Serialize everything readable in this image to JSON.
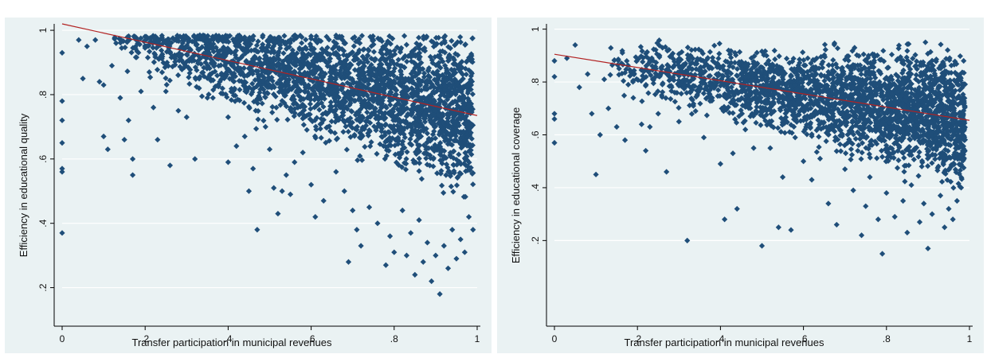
{
  "chart_data": [
    {
      "type": "scatter",
      "title": "",
      "xlabel": "Transfer participation in municipal revenues",
      "ylabel": "Efficiency in educational quality",
      "xlim": [
        0,
        1
      ],
      "ylim": [
        0.1,
        1.02
      ],
      "x_ticks": [
        0,
        0.2,
        0.4,
        0.6,
        0.8,
        1
      ],
      "x_tick_labels": [
        "0",
        ".2",
        ".4",
        ".6",
        ".8",
        "1"
      ],
      "y_ticks": [
        0.2,
        0.4,
        0.6,
        0.8,
        1
      ],
      "y_tick_labels": [
        ".2",
        ".4",
        ".6",
        ".8",
        "1"
      ],
      "grid": true,
      "point_color": "#1f4e79",
      "fit_color": "#b22222",
      "fit_line": [
        [
          0,
          1.02
        ],
        [
          1,
          0.735
        ]
      ],
      "series": [
        {
          "points": [
            [
              0,
              0.93
            ],
            [
              0,
              0.78
            ],
            [
              0,
              0.72
            ],
            [
              0,
              0.65
            ],
            [
              0,
              0.57
            ],
            [
              0,
              0.56
            ],
            [
              0,
              0.37
            ],
            [
              0.04,
              0.97
            ],
            [
              0.05,
              0.85
            ],
            [
              0.06,
              0.95
            ],
            [
              0.08,
              0.97
            ],
            [
              0.09,
              0.84
            ],
            [
              0.1,
              0.83
            ],
            [
              0.1,
              0.67
            ],
            [
              0.11,
              0.63
            ],
            [
              0.12,
              0.89
            ],
            [
              0.13,
              0.96
            ],
            [
              0.14,
              0.79
            ],
            [
              0.15,
              0.66
            ],
            [
              0.16,
              0.72
            ],
            [
              0.17,
              0.6
            ],
            [
              0.17,
              0.55
            ],
            [
              0.19,
              0.81
            ],
            [
              0.21,
              0.87
            ],
            [
              0.22,
              0.76
            ],
            [
              0.23,
              0.66
            ],
            [
              0.25,
              0.81
            ],
            [
              0.26,
              0.58
            ],
            [
              0.28,
              0.75
            ],
            [
              0.3,
              0.73
            ],
            [
              0.32,
              0.6
            ],
            [
              0.33,
              0.82
            ],
            [
              0.35,
              0.79
            ],
            [
              0.38,
              0.84
            ],
            [
              0.4,
              0.73
            ],
            [
              0.4,
              0.59
            ],
            [
              0.42,
              0.64
            ],
            [
              0.44,
              0.67
            ],
            [
              0.45,
              0.5
            ],
            [
              0.46,
              0.57
            ],
            [
              0.47,
              0.38
            ],
            [
              0.49,
              0.7
            ],
            [
              0.5,
              0.63
            ],
            [
              0.51,
              0.51
            ],
            [
              0.52,
              0.43
            ],
            [
              0.53,
              0.5
            ],
            [
              0.54,
              0.55
            ],
            [
              0.55,
              0.49
            ],
            [
              0.56,
              0.59
            ],
            [
              0.58,
              0.62
            ],
            [
              0.6,
              0.52
            ],
            [
              0.61,
              0.42
            ],
            [
              0.63,
              0.47
            ],
            [
              0.66,
              0.56
            ],
            [
              0.68,
              0.5
            ],
            [
              0.69,
              0.28
            ],
            [
              0.7,
              0.44
            ],
            [
              0.71,
              0.38
            ],
            [
              0.72,
              0.33
            ],
            [
              0.74,
              0.45
            ],
            [
              0.76,
              0.4
            ],
            [
              0.78,
              0.27
            ],
            [
              0.79,
              0.36
            ],
            [
              0.8,
              0.31
            ],
            [
              0.82,
              0.44
            ],
            [
              0.83,
              0.3
            ],
            [
              0.84,
              0.37
            ],
            [
              0.85,
              0.24
            ],
            [
              0.86,
              0.41
            ],
            [
              0.87,
              0.28
            ],
            [
              0.88,
              0.34
            ],
            [
              0.89,
              0.22
            ],
            [
              0.9,
              0.3
            ],
            [
              0.91,
              0.18
            ],
            [
              0.92,
              0.33
            ],
            [
              0.93,
              0.26
            ],
            [
              0.94,
              0.38
            ],
            [
              0.95,
              0.29
            ],
            [
              0.96,
              0.35
            ],
            [
              0.97,
              0.31
            ],
            [
              0.98,
              0.42
            ],
            [
              0.99,
              0.38
            ]
          ]
        }
      ]
    },
    {
      "type": "scatter",
      "title": "",
      "xlabel": "Transfer participation in municipal revenues",
      "ylabel": "Efficiency in educational coverage",
      "xlim": [
        0,
        1
      ],
      "ylim": [
        -0.1,
        1.02
      ],
      "x_ticks": [
        0,
        0.2,
        0.4,
        0.6,
        0.8,
        1
      ],
      "x_tick_labels": [
        "0",
        ".2",
        ".4",
        ".6",
        ".8",
        "1"
      ],
      "y_ticks": [
        0.2,
        0.4,
        0.6,
        0.8,
        1
      ],
      "y_tick_labels": [
        ".2",
        ".4",
        ".6",
        ".8",
        "1"
      ],
      "grid": true,
      "point_color": "#1f4e79",
      "fit_color": "#b22222",
      "fit_line": [
        [
          0,
          0.905
        ],
        [
          1,
          0.655
        ]
      ],
      "series": [
        {
          "points": [
            [
              0,
              0.88
            ],
            [
              0,
              0.82
            ],
            [
              0,
              0.68
            ],
            [
              0,
              0.66
            ],
            [
              0,
              0.57
            ],
            [
              0.03,
              0.89
            ],
            [
              0.05,
              0.94
            ],
            [
              0.06,
              0.78
            ],
            [
              0.08,
              0.83
            ],
            [
              0.09,
              0.68
            ],
            [
              0.1,
              0.45
            ],
            [
              0.11,
              0.6
            ],
            [
              0.12,
              0.81
            ],
            [
              0.13,
              0.7
            ],
            [
              0.15,
              0.63
            ],
            [
              0.17,
              0.58
            ],
            [
              0.19,
              0.74
            ],
            [
              0.21,
              0.64
            ],
            [
              0.22,
              0.54
            ],
            [
              0.23,
              0.63
            ],
            [
              0.25,
              0.68
            ],
            [
              0.27,
              0.46
            ],
            [
              0.29,
              0.76
            ],
            [
              0.3,
              0.65
            ],
            [
              0.32,
              0.2
            ],
            [
              0.34,
              0.69
            ],
            [
              0.36,
              0.59
            ],
            [
              0.38,
              0.74
            ],
            [
              0.4,
              0.49
            ],
            [
              0.41,
              0.28
            ],
            [
              0.43,
              0.53
            ],
            [
              0.44,
              0.32
            ],
            [
              0.46,
              0.62
            ],
            [
              0.48,
              0.55
            ],
            [
              0.5,
              0.18
            ],
            [
              0.52,
              0.55
            ],
            [
              0.54,
              0.25
            ],
            [
              0.55,
              0.44
            ],
            [
              0.57,
              0.24
            ],
            [
              0.58,
              0.59
            ],
            [
              0.6,
              0.5
            ],
            [
              0.62,
              0.43
            ],
            [
              0.64,
              0.51
            ],
            [
              0.66,
              0.34
            ],
            [
              0.68,
              0.26
            ],
            [
              0.7,
              0.47
            ],
            [
              0.72,
              0.39
            ],
            [
              0.74,
              0.22
            ],
            [
              0.75,
              0.33
            ],
            [
              0.76,
              0.44
            ],
            [
              0.78,
              0.28
            ],
            [
              0.79,
              0.15
            ],
            [
              0.8,
              0.38
            ],
            [
              0.82,
              0.29
            ],
            [
              0.84,
              0.35
            ],
            [
              0.85,
              0.23
            ],
            [
              0.86,
              0.41
            ],
            [
              0.88,
              0.27
            ],
            [
              0.89,
              0.34
            ],
            [
              0.9,
              0.17
            ],
            [
              0.91,
              0.3
            ],
            [
              0.93,
              0.37
            ],
            [
              0.94,
              0.25
            ],
            [
              0.95,
              0.32
            ],
            [
              0.96,
              0.28
            ],
            [
              0.97,
              0.35
            ],
            [
              0.98,
              0.4
            ]
          ]
        }
      ]
    }
  ]
}
